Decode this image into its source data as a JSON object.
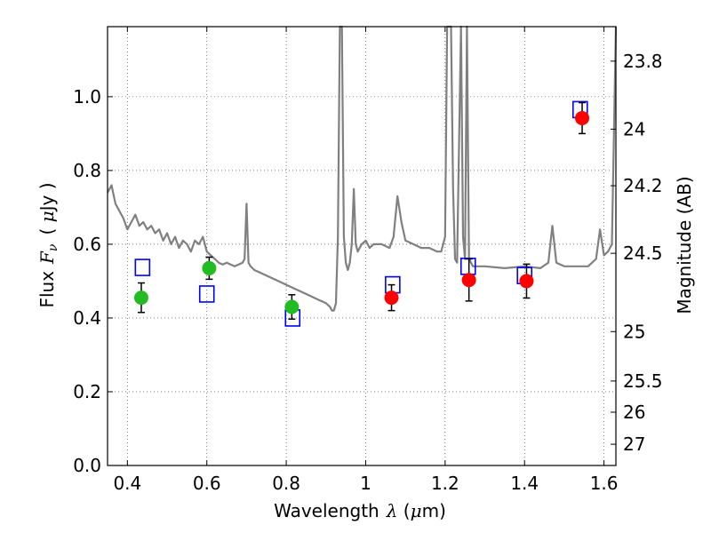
{
  "chart_data": {
    "type": "scatter",
    "xlabel_text": "Wavelength",
    "xlabel_symbol": "λ",
    "xlabel_unit_open": " (",
    "xlabel_unit_mu": "μ",
    "xlabel_unit_close": "m)",
    "ylabel_text": "Flux",
    "ylabel_symbol": "F",
    "ylabel_symbol_sub": "ν",
    "ylabel_unit_open": "( ",
    "ylabel_unit_mu": "μ",
    "ylabel_unit_close": "Jy )",
    "y2label": "Magnitude (AB)",
    "xlim": [
      0.35,
      1.63
    ],
    "ylim": [
      0.0,
      1.19
    ],
    "xticks": [
      {
        "value": 0.4,
        "label": "0.4"
      },
      {
        "value": 0.6,
        "label": "0.6"
      },
      {
        "value": 0.8,
        "label": "0.8"
      },
      {
        "value": 1.0,
        "label": "1"
      },
      {
        "value": 1.2,
        "label": "1.2"
      },
      {
        "value": 1.4,
        "label": "1.4"
      },
      {
        "value": 1.6,
        "label": "1.6"
      }
    ],
    "yticks": [
      {
        "value": 0.0,
        "label": "0.0"
      },
      {
        "value": 0.2,
        "label": "0.2"
      },
      {
        "value": 0.4,
        "label": "0.4"
      },
      {
        "value": 0.6,
        "label": "0.6"
      },
      {
        "value": 0.8,
        "label": "0.8"
      },
      {
        "value": 1.0,
        "label": "1.0"
      }
    ],
    "y2ticks": [
      {
        "value": 23.8,
        "label": "23.8"
      },
      {
        "value": 24.0,
        "label": "24"
      },
      {
        "value": 24.2,
        "label": "24.2"
      },
      {
        "value": 24.5,
        "label": "24.5"
      },
      {
        "value": 25.0,
        "label": "25"
      },
      {
        "value": 25.5,
        "label": "25.5"
      },
      {
        "value": 26.0,
        "label": "26"
      },
      {
        "value": 27.0,
        "label": "27"
      }
    ],
    "grid": true,
    "series": [
      {
        "kind": "observed",
        "color": "#22bb22",
        "points": [
          {
            "x": 0.435,
            "y": 0.455,
            "err": 0.04
          },
          {
            "x": 0.606,
            "y": 0.535,
            "err": 0.03
          },
          {
            "x": 0.814,
            "y": 0.43,
            "err": 0.033
          }
        ]
      },
      {
        "kind": "observed",
        "color": "#ff0000",
        "points": [
          {
            "x": 1.065,
            "y": 0.455,
            "err": 0.035
          },
          {
            "x": 1.26,
            "y": 0.503,
            "err": 0.057
          },
          {
            "x": 1.405,
            "y": 0.5,
            "err": 0.046
          },
          {
            "x": 1.545,
            "y": 0.942,
            "err": 0.042
          }
        ]
      },
      {
        "kind": "model",
        "color": "#0000ff",
        "marker": "square",
        "points": [
          {
            "x": 0.438,
            "y": 0.537
          },
          {
            "x": 0.6,
            "y": 0.465
          },
          {
            "x": 0.816,
            "y": 0.4
          },
          {
            "x": 1.068,
            "y": 0.49
          },
          {
            "x": 1.258,
            "y": 0.54
          },
          {
            "x": 1.4,
            "y": 0.515
          },
          {
            "x": 1.54,
            "y": 0.965
          }
        ]
      },
      {
        "kind": "spectrum",
        "color": "#808080",
        "points": [
          [
            0.35,
            0.74
          ],
          [
            0.36,
            0.76
          ],
          [
            0.37,
            0.71
          ],
          [
            0.38,
            0.69
          ],
          [
            0.39,
            0.67
          ],
          [
            0.4,
            0.64
          ],
          [
            0.41,
            0.66
          ],
          [
            0.42,
            0.68
          ],
          [
            0.43,
            0.65
          ],
          [
            0.44,
            0.66
          ],
          [
            0.45,
            0.64
          ],
          [
            0.46,
            0.65
          ],
          [
            0.47,
            0.63
          ],
          [
            0.48,
            0.64
          ],
          [
            0.49,
            0.61
          ],
          [
            0.5,
            0.63
          ],
          [
            0.51,
            0.6
          ],
          [
            0.52,
            0.62
          ],
          [
            0.53,
            0.59
          ],
          [
            0.54,
            0.61
          ],
          [
            0.55,
            0.6
          ],
          [
            0.56,
            0.58
          ],
          [
            0.57,
            0.61
          ],
          [
            0.58,
            0.6
          ],
          [
            0.59,
            0.62
          ],
          [
            0.6,
            0.58
          ],
          [
            0.61,
            0.57
          ],
          [
            0.62,
            0.56
          ],
          [
            0.63,
            0.55
          ],
          [
            0.64,
            0.545
          ],
          [
            0.65,
            0.55
          ],
          [
            0.66,
            0.545
          ],
          [
            0.67,
            0.54
          ],
          [
            0.68,
            0.545
          ],
          [
            0.69,
            0.55
          ],
          [
            0.695,
            0.56
          ],
          [
            0.7,
            0.71
          ],
          [
            0.705,
            0.55
          ],
          [
            0.71,
            0.54
          ],
          [
            0.72,
            0.53
          ],
          [
            0.74,
            0.52
          ],
          [
            0.76,
            0.51
          ],
          [
            0.78,
            0.5
          ],
          [
            0.8,
            0.49
          ],
          [
            0.82,
            0.48
          ],
          [
            0.84,
            0.47
          ],
          [
            0.86,
            0.46
          ],
          [
            0.88,
            0.45
          ],
          [
            0.9,
            0.44
          ],
          [
            0.91,
            0.43
          ],
          [
            0.915,
            0.42
          ],
          [
            0.92,
            0.42
          ],
          [
            0.925,
            0.44
          ],
          [
            0.93,
            0.62
          ],
          [
            0.935,
            1.19
          ],
          [
            0.94,
            1.19
          ],
          [
            0.945,
            0.62
          ],
          [
            0.95,
            0.55
          ],
          [
            0.955,
            0.53
          ],
          [
            0.96,
            0.55
          ],
          [
            0.965,
            0.6
          ],
          [
            0.97,
            0.75
          ],
          [
            0.975,
            0.6
          ],
          [
            0.98,
            0.58
          ],
          [
            0.99,
            0.6
          ],
          [
            1.0,
            0.61
          ],
          [
            1.01,
            0.59
          ],
          [
            1.02,
            0.6
          ],
          [
            1.04,
            0.6
          ],
          [
            1.06,
            0.59
          ],
          [
            1.07,
            0.62
          ],
          [
            1.08,
            0.73
          ],
          [
            1.09,
            0.66
          ],
          [
            1.1,
            0.61
          ],
          [
            1.12,
            0.6
          ],
          [
            1.14,
            0.59
          ],
          [
            1.16,
            0.59
          ],
          [
            1.18,
            0.58
          ],
          [
            1.19,
            0.58
          ],
          [
            1.2,
            0.62
          ],
          [
            1.205,
            1.19
          ],
          [
            1.215,
            1.19
          ],
          [
            1.22,
            0.75
          ],
          [
            1.225,
            0.56
          ],
          [
            1.23,
            0.55
          ],
          [
            1.24,
            1.19
          ],
          [
            1.245,
            0.62
          ],
          [
            1.25,
            0.56
          ],
          [
            1.255,
            1.19
          ],
          [
            1.26,
            0.56
          ],
          [
            1.27,
            0.54
          ],
          [
            1.3,
            0.54
          ],
          [
            1.35,
            0.535
          ],
          [
            1.4,
            0.54
          ],
          [
            1.44,
            0.535
          ],
          [
            1.46,
            0.55
          ],
          [
            1.47,
            0.65
          ],
          [
            1.48,
            0.55
          ],
          [
            1.5,
            0.54
          ],
          [
            1.53,
            0.54
          ],
          [
            1.56,
            0.54
          ],
          [
            1.58,
            0.56
          ],
          [
            1.59,
            0.64
          ],
          [
            1.6,
            0.57
          ],
          [
            1.61,
            0.58
          ],
          [
            1.62,
            0.6
          ],
          [
            1.625,
            0.9
          ],
          [
            1.63,
            1.19
          ]
        ]
      }
    ]
  }
}
